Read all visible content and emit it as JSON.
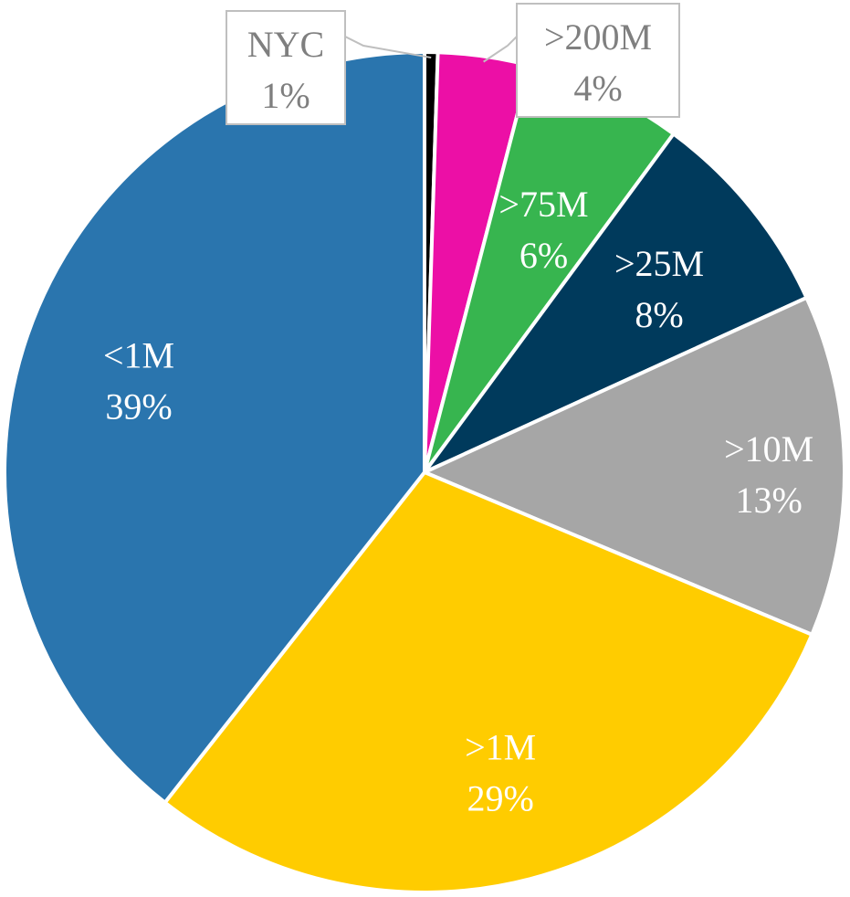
{
  "chart_data": {
    "type": "pie",
    "title": "",
    "slices": [
      {
        "label": "NYC",
        "pct_label": "1%",
        "value": 0.5,
        "color": "#000000",
        "label_color": "#7f7f7f",
        "callout": true
      },
      {
        "label": ">200M",
        "pct_label": "4%",
        "value": 3.5,
        "color": "#EC0FA6",
        "label_color": "#7f7f7f",
        "callout": true
      },
      {
        "label": ">75M",
        "pct_label": "6%",
        "value": 6,
        "color": "#37B54F",
        "label_color": "#ffffff",
        "callout": false
      },
      {
        "label": ">25M",
        "pct_label": "8%",
        "value": 8,
        "color": "#003A5C",
        "label_color": "#ffffff",
        "callout": false
      },
      {
        "label": ">10M",
        "pct_label": "13%",
        "value": 13,
        "color": "#A6A6A6",
        "label_color": "#ffffff",
        "callout": false
      },
      {
        "label": ">1M",
        "pct_label": "29%",
        "value": 29,
        "color": "#FFCC00",
        "label_color": "#ffffff",
        "callout": false
      },
      {
        "label": "<1M",
        "pct_label": "39%",
        "value": 39,
        "color": "#2A75AE",
        "label_color": "#ffffff",
        "callout": false
      }
    ],
    "start_angle_deg": 0,
    "direction": "clockwise",
    "legend": "none"
  }
}
